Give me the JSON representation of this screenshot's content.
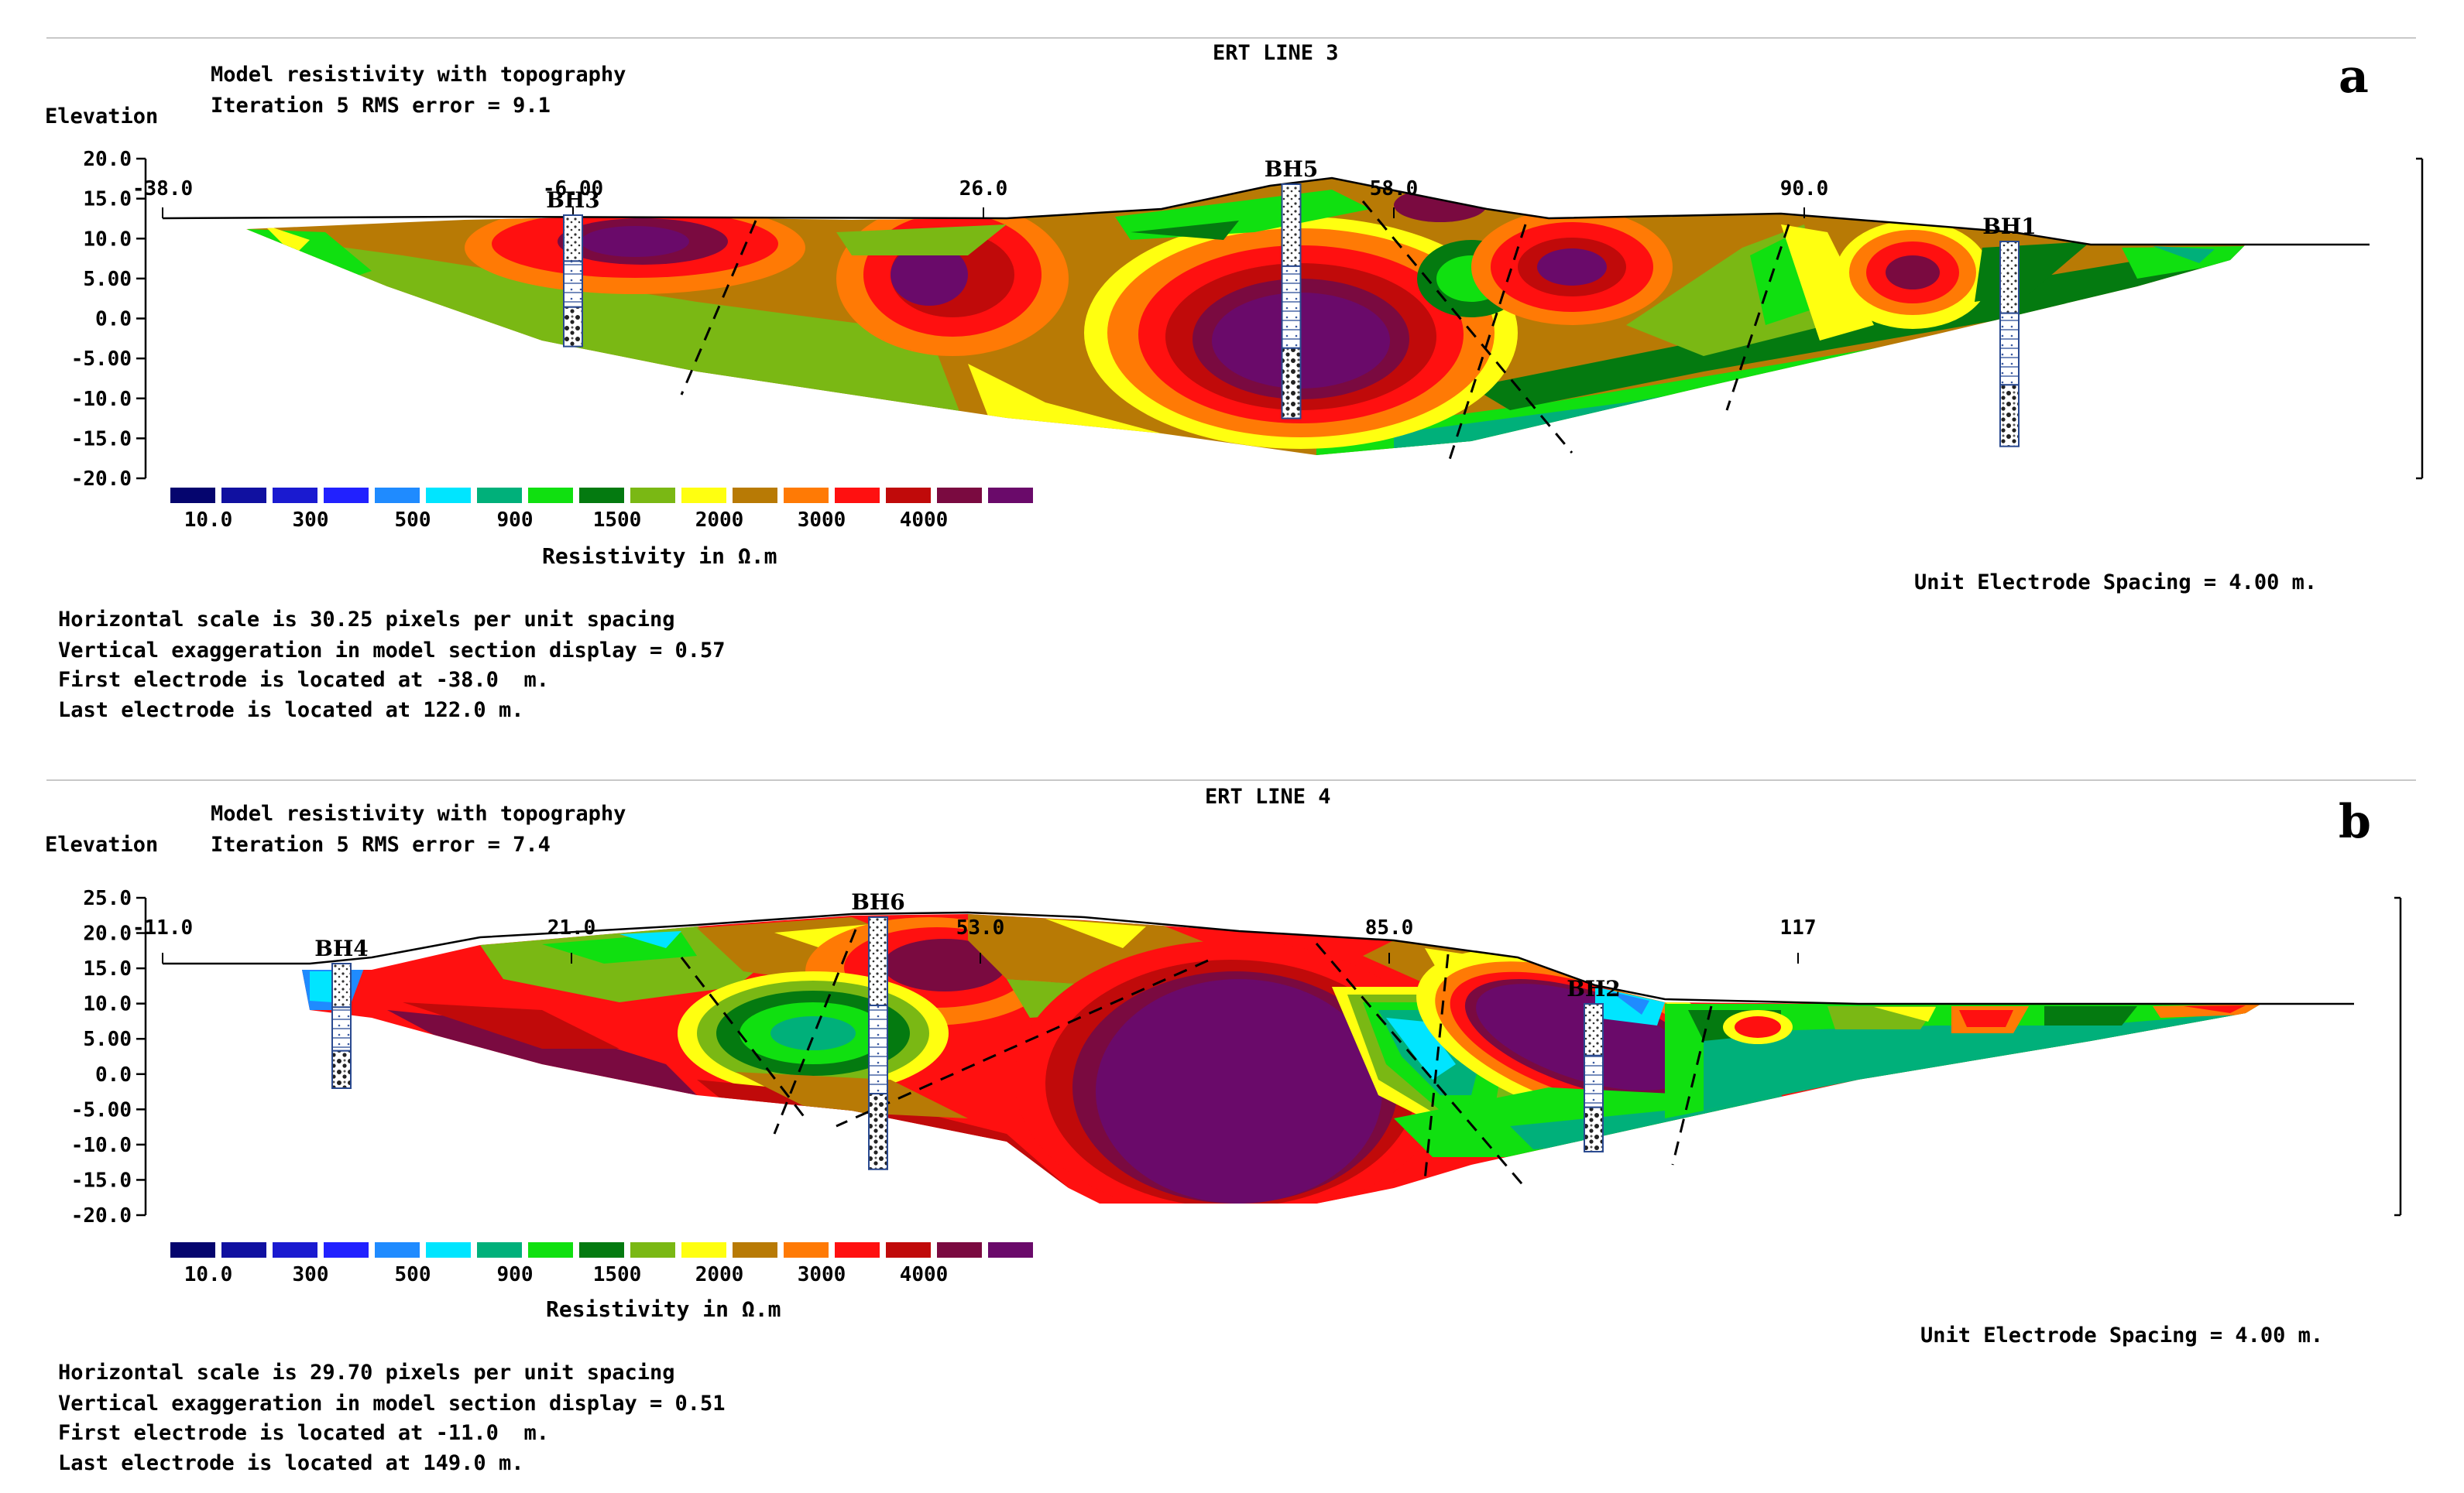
{
  "palette": [
    {
      "color": "#05056e"
    },
    {
      "color": "#1010a0"
    },
    {
      "color": "#1a1ad0"
    },
    {
      "color": "#2121ff"
    },
    {
      "color": "#1f8bff"
    },
    {
      "color": "#00e5ff"
    },
    {
      "color": "#00b07a"
    },
    {
      "color": "#10e010"
    },
    {
      "color": "#047a10"
    },
    {
      "color": "#7ab814"
    },
    {
      "color": "#ffff10"
    },
    {
      "color": "#b87a05"
    },
    {
      "color": "#ff7a05"
    },
    {
      "color": "#ff1010"
    },
    {
      "color": "#c00a0a"
    },
    {
      "color": "#7a0a40"
    },
    {
      "color": "#6a0a6a"
    }
  ],
  "chart_data": [
    {
      "type": "heatmap",
      "panel_letter": "a",
      "title": "ERT LINE 3",
      "subtitle_lines": [
        "Model resistivity with topography",
        "Iteration 5 RMS error = 9.1"
      ],
      "ylabel": "Elevation",
      "y_ticks": [
        "20.0",
        "15.0",
        "10.0",
        "5.00",
        "0.0",
        "-5.00",
        "-10.0",
        "-15.0",
        "-20.0"
      ],
      "ylim": [
        -20,
        20
      ],
      "x_ticks": [
        {
          "x": -38,
          "label": "-38.0"
        },
        {
          "x": -6,
          "label": "-6.00"
        },
        {
          "x": 26,
          "label": "26.0"
        },
        {
          "x": 58,
          "label": "58.0"
        },
        {
          "x": 90,
          "label": "90.0"
        }
      ],
      "xlim": [
        -38,
        122
      ],
      "boreholes": [
        {
          "name": "BH3",
          "x": -6,
          "bottom": -3.5
        },
        {
          "name": "BH5",
          "x": 50,
          "bottom": -12.5
        },
        {
          "name": "BH1",
          "x": 106,
          "bottom": -16
        }
      ],
      "colorbar_labels": [
        "10.0",
        "300",
        "500",
        "900",
        "1500",
        "2000",
        "3000",
        "4000"
      ],
      "colorbar_title": "Resistivity in Ω.m",
      "unit_spacing": "Unit Electrode Spacing = 4.00 m.",
      "info_lines": [
        "Horizontal scale is 30.25 pixels per unit spacing",
        "Vertical exaggeration in model section display = 0.57",
        "First electrode is located at -38.0  m.",
        "Last electrode is located at 122.0 m."
      ]
    },
    {
      "type": "heatmap",
      "panel_letter": "b",
      "title": "ERT LINE 4",
      "subtitle_lines": [
        "Model resistivity with topography",
        "Iteration 5 RMS error = 7.4"
      ],
      "ylabel": "Elevation",
      "y_ticks": [
        "25.0",
        "20.0",
        "15.0",
        "10.0",
        "5.00",
        "0.0",
        "-5.00",
        "-10.0",
        "-15.0",
        "-20.0"
      ],
      "ylim": [
        -20,
        25
      ],
      "x_ticks": [
        {
          "x": -11,
          "label": "-11.0"
        },
        {
          "x": 21,
          "label": "21.0"
        },
        {
          "x": 53,
          "label": "53.0"
        },
        {
          "x": 85,
          "label": "85.0"
        },
        {
          "x": 117,
          "label": "117"
        }
      ],
      "xlim": [
        -11,
        149
      ],
      "boreholes": [
        {
          "name": "BH4",
          "x": 3,
          "bottom": -2
        },
        {
          "name": "BH6",
          "x": 45,
          "bottom": -13.5
        },
        {
          "name": "BH2",
          "x": 101,
          "bottom": -11
        }
      ],
      "colorbar_labels": [
        "10.0",
        "300",
        "500",
        "900",
        "1500",
        "2000",
        "3000",
        "4000"
      ],
      "colorbar_title": "Resistivity in Ω.m",
      "unit_spacing": "Unit Electrode Spacing = 4.00 m.",
      "info_lines": [
        "Horizontal scale is 29.70 pixels per unit spacing",
        "Vertical exaggeration in model section display = 0.51",
        "First electrode is located at -11.0  m.",
        "Last electrode is located at 149.0 m."
      ]
    }
  ]
}
